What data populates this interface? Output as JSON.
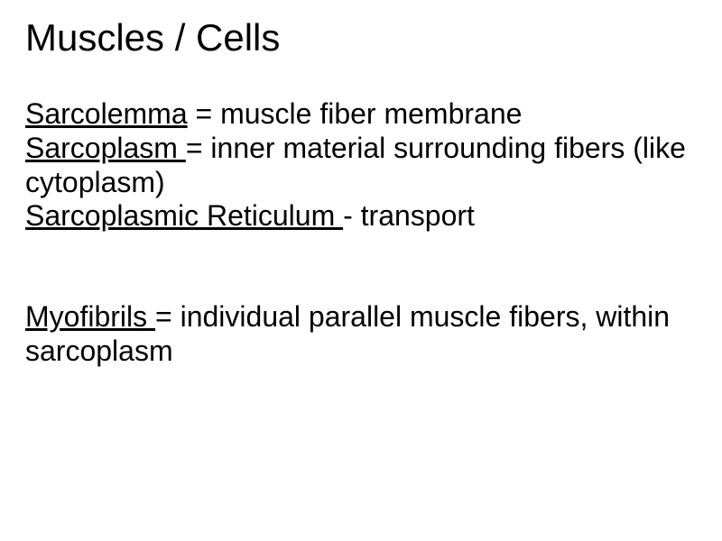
{
  "title": "Muscles / Cells",
  "title_fontsize": 42,
  "body_fontsize": 32,
  "text_color": "#000000",
  "background_color": "#ffffff",
  "font_family": "Arial, Helvetica, sans-serif",
  "entries": [
    {
      "term": "Sarcolemma",
      "sep": " = ",
      "def": "muscle fiber membrane"
    },
    {
      "term": "Sarcoplasm ",
      "sep": "= ",
      "def": "inner material surrounding fibers  (like cytoplasm)"
    },
    {
      "term": "Sarcoplasmic Reticulum ",
      "sep": "- ",
      "def": "transport"
    },
    {
      "term": "Myofibrils ",
      "sep": " = ",
      "def": "individual parallel muscle fibers, within sarcoplasm"
    }
  ]
}
